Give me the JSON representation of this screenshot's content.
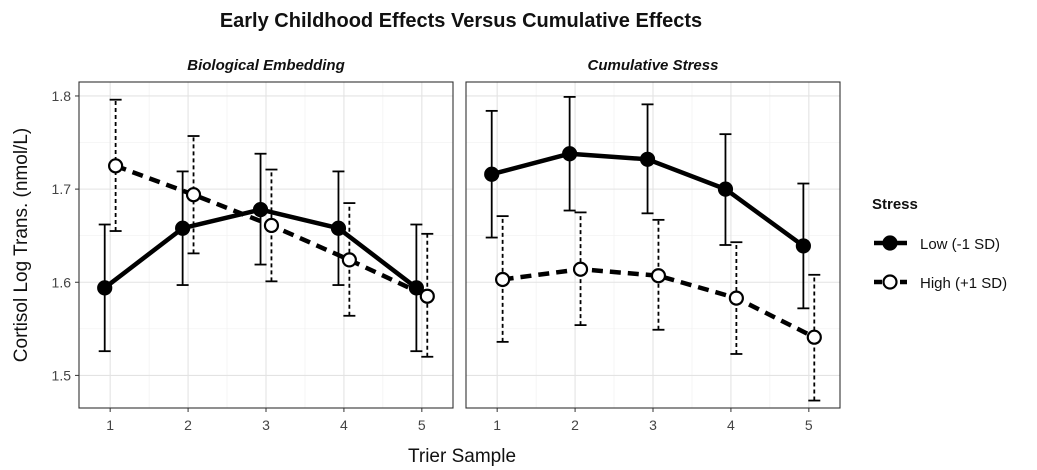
{
  "chart_data": {
    "type": "line",
    "title": "Early Childhood Effects Versus Cumulative Effects",
    "xlabel": "Trier Sample",
    "ylabel": "Cortisol Log Trans. (nmol/L)",
    "x_ticks": [
      1,
      2,
      3,
      4,
      5
    ],
    "y_ticks": [
      1.5,
      1.6,
      1.7,
      1.8
    ],
    "xlim": [
      0.6,
      5.4
    ],
    "ylim": [
      1.465,
      1.815
    ],
    "grid": true,
    "legend": {
      "title": "Stress",
      "placement": "right",
      "entries": [
        "Low (-1 SD)",
        "High (+1 SD)"
      ]
    },
    "panels": [
      {
        "title": "Biological Embedding",
        "series": [
          {
            "name": "Low (-1 SD)",
            "style": "solid-filled",
            "x": [
              1,
              2,
              3,
              4,
              5
            ],
            "y": [
              1.594,
              1.658,
              1.678,
              1.658,
              1.594
            ],
            "lower": [
              1.526,
              1.597,
              1.619,
              1.597,
              1.526
            ],
            "upper": [
              1.662,
              1.719,
              1.738,
              1.719,
              1.662
            ]
          },
          {
            "name": "High (+1 SD)",
            "style": "dashed-open",
            "x": [
              1,
              2,
              3,
              4,
              5
            ],
            "y": [
              1.725,
              1.694,
              1.661,
              1.624,
              1.585
            ],
            "lower": [
              1.655,
              1.631,
              1.601,
              1.564,
              1.52
            ],
            "upper": [
              1.796,
              1.757,
              1.721,
              1.685,
              1.652
            ]
          }
        ]
      },
      {
        "title": "Cumulative Stress",
        "series": [
          {
            "name": "Low (-1 SD)",
            "style": "solid-filled",
            "x": [
              1,
              2,
              3,
              4,
              5
            ],
            "y": [
              1.716,
              1.738,
              1.732,
              1.7,
              1.639
            ],
            "lower": [
              1.648,
              1.677,
              1.674,
              1.64,
              1.572
            ],
            "upper": [
              1.784,
              1.799,
              1.791,
              1.759,
              1.706
            ]
          },
          {
            "name": "High (+1 SD)",
            "style": "dashed-open",
            "x": [
              1,
              2,
              3,
              4,
              5
            ],
            "y": [
              1.603,
              1.614,
              1.607,
              1.583,
              1.541
            ],
            "lower": [
              1.536,
              1.554,
              1.549,
              1.523,
              1.473
            ],
            "upper": [
              1.671,
              1.675,
              1.667,
              1.643,
              1.608
            ]
          }
        ]
      }
    ]
  }
}
